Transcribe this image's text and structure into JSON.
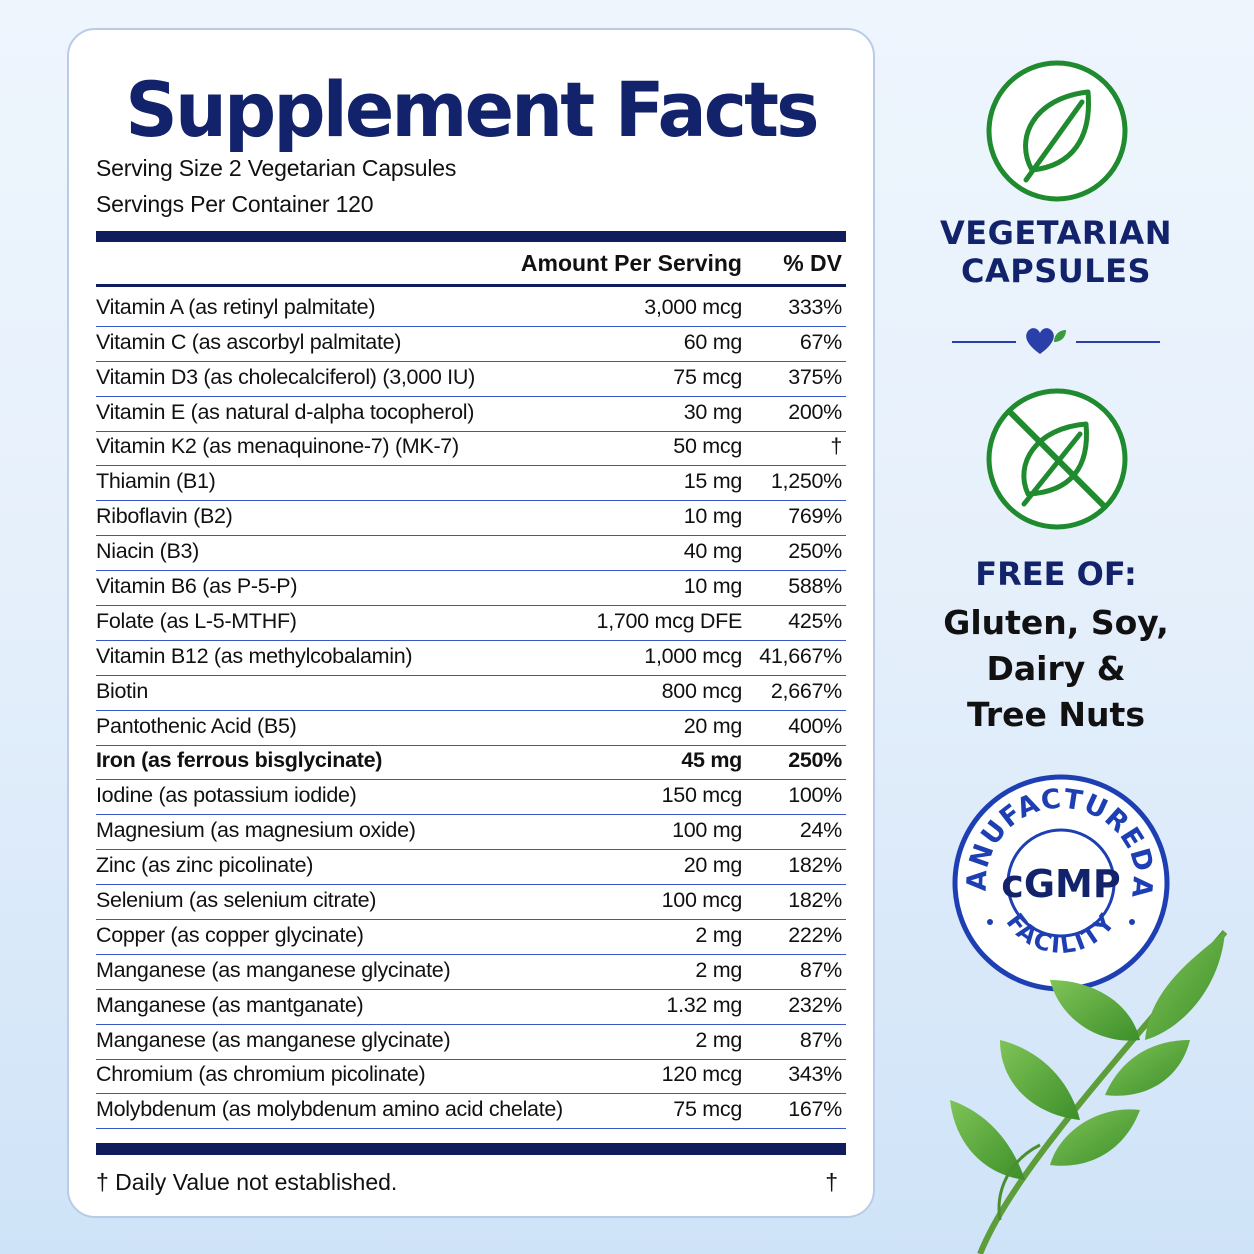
{
  "label": {
    "title": "Supplement Facts",
    "serving_size": "Serving Size 2 Vegetarian Capsules",
    "servings_per_container": "Servings Per Container 120",
    "header_amount": "Amount Per Serving",
    "header_dv": "% DV",
    "rows": [
      {
        "name": "Vitamin A (as retinyl palmitate)",
        "amount": "3,000 mcg",
        "dv": "333%"
      },
      {
        "name": "Vitamin C (as ascorbyl palmitate)",
        "amount": "60 mg",
        "dv": "67%"
      },
      {
        "name": "Vitamin D3 (as cholecalciferol) (3,000 IU)",
        "amount": "75 mcg",
        "dv": "375%"
      },
      {
        "name": "Vitamin E (as natural d-alpha tocopherol)",
        "amount": "30 mg",
        "dv": "200%"
      },
      {
        "name": "Vitamin K2 (as menaquinone-7) (MK-7)",
        "amount": "50 mcg",
        "dv": "†"
      },
      {
        "name": "Thiamin (B1)",
        "amount": "15 mg",
        "dv": "1,250%"
      },
      {
        "name": "Riboflavin (B2)",
        "amount": "10 mg",
        "dv": "769%"
      },
      {
        "name": "Niacin (B3)",
        "amount": "40 mg",
        "dv": "250%"
      },
      {
        "name": "Vitamin B6 (as P-5-P)",
        "amount": "10 mg",
        "dv": "588%"
      },
      {
        "name": "Folate (as L-5-MTHF)",
        "amount": "1,700 mcg DFE",
        "dv": "425%"
      },
      {
        "name": "Vitamin B12 (as methylcobalamin)",
        "amount": "1,000 mcg",
        "dv": "41,667%"
      },
      {
        "name": "Biotin",
        "amount": "800 mcg",
        "dv": "2,667%"
      },
      {
        "name": "Pantothenic Acid (B5)",
        "amount": "20 mg",
        "dv": "400%"
      },
      {
        "name": "Iron (as ferrous bisglycinate)",
        "amount": "45 mg",
        "dv": "250%",
        "bold": true
      },
      {
        "name": "Iodine (as potassium iodide)",
        "amount": "150 mcg",
        "dv": "100%"
      },
      {
        "name": "Magnesium (as magnesium oxide)",
        "amount": "100 mg",
        "dv": "24%"
      },
      {
        "name": "Zinc (as zinc picolinate)",
        "amount": "20 mg",
        "dv": "182%"
      },
      {
        "name": "Selenium (as selenium citrate)",
        "amount": "100 mcg",
        "dv": "182%"
      },
      {
        "name": "Copper (as copper glycinate)",
        "amount": "2 mg",
        "dv": "222%"
      },
      {
        "name": "Manganese (as manganese glycinate)",
        "amount": "2 mg",
        "dv": "87%"
      },
      {
        "name": "Manganese (as mantganate)",
        "amount": "1.32 mg",
        "dv": "232%"
      },
      {
        "name": "Manganese (as manganese glycinate)",
        "amount": "2 mg",
        "dv": "87%"
      },
      {
        "name": "Chromium (as chromium picolinate)",
        "amount": "120 mcg",
        "dv": "343%"
      },
      {
        "name": "Molybdenum (as molybdenum amino acid chelate)",
        "amount": "75 mcg",
        "dv": "167%"
      }
    ],
    "footnote": "† Daily Value not established.",
    "footnote_symbol": "†"
  },
  "side": {
    "vegetarian_line1": "VEGETARIAN",
    "vegetarian_line2": "CAPSULES",
    "free_title": "FREE OF:",
    "free_line1": "Gluten, Soy,",
    "free_line2": "Dairy &",
    "free_line3": "Tree Nuts",
    "badge_top": "MANUFACTURED IN ",
    "badge_rotated": "A",
    "badge_center": "cGMP",
    "badge_bottom": "FACILITY"
  },
  "icons": [
    "leaf-icon",
    "heart-leaf-icon",
    "no-leaf-icon",
    "cgmp-badge-icon",
    "leaves-decoration"
  ],
  "colors": {
    "navy": "#13236b",
    "rule": "#3b57c7",
    "green": "#1f8a2e",
    "badge_blue": "#1e3fb3"
  }
}
